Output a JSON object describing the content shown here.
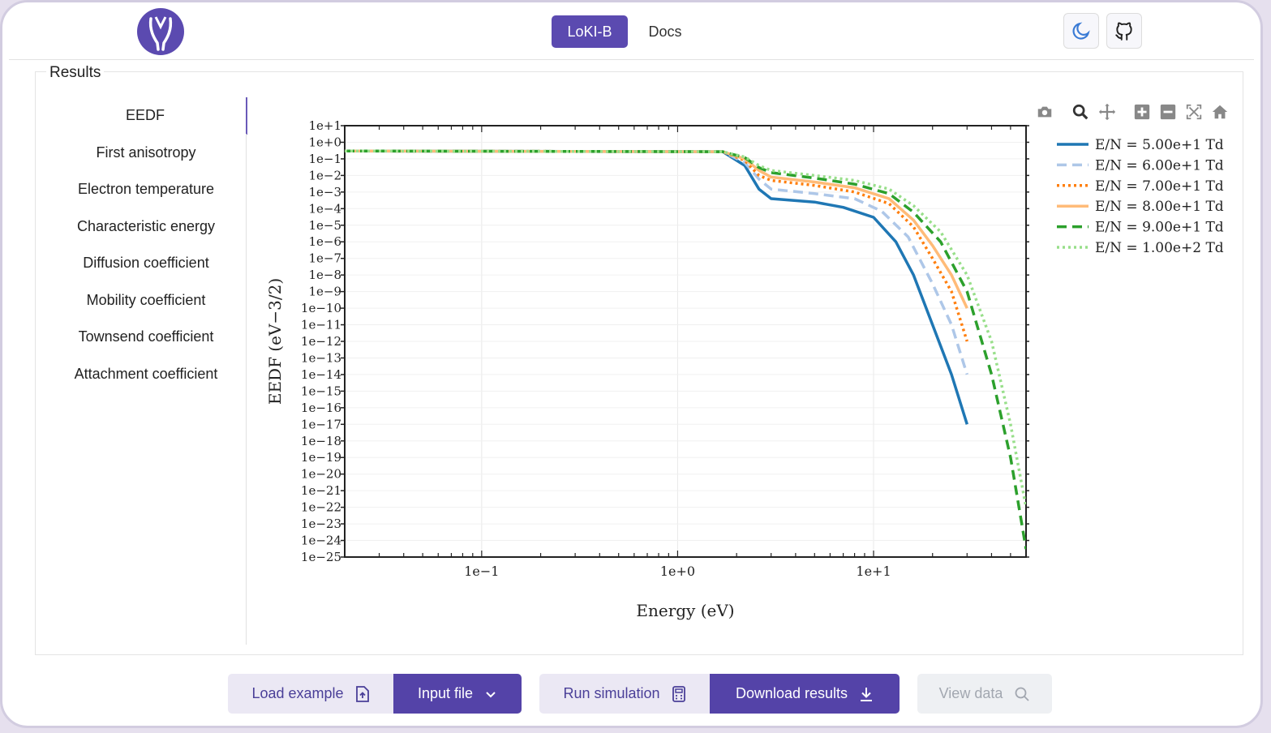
{
  "nav": {
    "active_label": "LoKI-B",
    "docs_label": "Docs"
  },
  "icons": {
    "logo": "loki-logo-icon",
    "theme": "moon-icon",
    "github": "github-icon"
  },
  "colors": {
    "accent": "#5443a8",
    "accent_light": "#ebe8f4"
  },
  "results": {
    "title": "Results",
    "tabs": [
      "EEDF",
      "First anisotropy",
      "Electron temperature",
      "Characteristic energy",
      "Diffusion coefficient",
      "Mobility coefficient",
      "Townsend coefficient",
      "Attachment coefficient"
    ],
    "active_tab": "EEDF"
  },
  "modebar": [
    "camera-icon",
    "zoom-icon",
    "pan-icon",
    "zoom-in-icon",
    "zoom-out-icon",
    "autoscale-icon",
    "home-icon"
  ],
  "chart_data": {
    "type": "line",
    "xlabel": "Energy (eV)",
    "ylabel": "EEDF (eV−3/2)",
    "xscale": "log",
    "yscale": "log",
    "xlim": [
      0.02,
      60
    ],
    "ylim": [
      "1e-25",
      "1e+1"
    ],
    "x_ticks": [
      "1e−1",
      "1e+0",
      "1e+1"
    ],
    "y_ticks": [
      "1e+1",
      "1e+0",
      "1e−1",
      "1e−2",
      "1e−3",
      "1e−4",
      "1e−5",
      "1e−6",
      "1e−7",
      "1e−8",
      "1e−9",
      "1e−10",
      "1e−11",
      "1e−12",
      "1e−13",
      "1e−14",
      "1e−15",
      "1e−16",
      "1e−17",
      "1e−18",
      "1e−19",
      "1e−20",
      "1e−21",
      "1e−22",
      "1e−23",
      "1e−24",
      "1e−25"
    ],
    "legend_position": "right",
    "grid": true,
    "series": [
      {
        "name": "E/N = 5.00e+1 Td",
        "color": "#1f77b4",
        "dash": "solid",
        "points": [
          [
            0.02,
            0.3
          ],
          [
            1.7,
            0.27
          ],
          [
            2.2,
            0.04
          ],
          [
            2.6,
            0.0015
          ],
          [
            3,
            0.0004
          ],
          [
            5,
            0.00025
          ],
          [
            7,
            0.00012
          ],
          [
            10,
            3e-05
          ],
          [
            13,
            1e-06
          ],
          [
            16,
            1e-08
          ],
          [
            20,
            1e-11
          ],
          [
            25,
            1e-14
          ],
          [
            30,
            1e-17
          ]
        ]
      },
      {
        "name": "E/N = 6.00e+1 Td",
        "color": "#aec7e8",
        "dash": "dashed",
        "points": [
          [
            0.02,
            0.3
          ],
          [
            1.7,
            0.27
          ],
          [
            2.2,
            0.06
          ],
          [
            2.6,
            0.006
          ],
          [
            3,
            0.0015
          ],
          [
            5,
            0.0008
          ],
          [
            8,
            0.0004
          ],
          [
            11,
            7e-05
          ],
          [
            15,
            2e-06
          ],
          [
            20,
            3e-09
          ],
          [
            25,
            1e-11
          ],
          [
            30,
            1e-14
          ]
        ]
      },
      {
        "name": "E/N = 7.00e+1 Td",
        "color": "#ff7f0e",
        "dash": "dotted",
        "points": [
          [
            0.02,
            0.3
          ],
          [
            1.7,
            0.27
          ],
          [
            2.2,
            0.08
          ],
          [
            2.6,
            0.01
          ],
          [
            3,
            0.005
          ],
          [
            5,
            0.0025
          ],
          [
            8,
            0.001
          ],
          [
            12,
            0.0002
          ],
          [
            16,
            8e-06
          ],
          [
            20,
            1e-07
          ],
          [
            25,
            1e-09
          ],
          [
            30,
            1e-12
          ]
        ]
      },
      {
        "name": "E/N = 8.00e+1 Td",
        "color": "#ffbb78",
        "dash": "solid",
        "points": [
          [
            0.02,
            0.3
          ],
          [
            1.7,
            0.27
          ],
          [
            2.2,
            0.1
          ],
          [
            2.6,
            0.02
          ],
          [
            3,
            0.008
          ],
          [
            5,
            0.004
          ],
          [
            8,
            0.0018
          ],
          [
            12,
            0.0004
          ],
          [
            16,
            2e-05
          ],
          [
            20,
            6e-07
          ],
          [
            25,
            1e-08
          ],
          [
            30,
            1e-10
          ]
        ]
      },
      {
        "name": "E/N = 9.00e+1 Td",
        "color": "#2ca02c",
        "dash": "dashed",
        "points": [
          [
            0.02,
            0.3
          ],
          [
            1.7,
            0.27
          ],
          [
            2.2,
            0.12
          ],
          [
            2.6,
            0.03
          ],
          [
            3,
            0.015
          ],
          [
            5,
            0.007
          ],
          [
            8,
            0.003
          ],
          [
            12,
            0.0008
          ],
          [
            16,
            6e-05
          ],
          [
            22,
            1e-06
          ],
          [
            30,
            1e-09
          ],
          [
            40,
            1e-14
          ],
          [
            50,
            1e-19
          ],
          [
            60,
            3e-25
          ]
        ]
      },
      {
        "name": "E/N = 1.00e+2 Td",
        "color": "#98df8a",
        "dash": "dotted",
        "points": [
          [
            0.02,
            0.3
          ],
          [
            1.7,
            0.27
          ],
          [
            2.2,
            0.13
          ],
          [
            2.6,
            0.04
          ],
          [
            3,
            0.02
          ],
          [
            5,
            0.01
          ],
          [
            8,
            0.005
          ],
          [
            12,
            0.0015
          ],
          [
            16,
            0.00015
          ],
          [
            22,
            4e-06
          ],
          [
            30,
            1e-08
          ],
          [
            40,
            1e-12
          ],
          [
            50,
            1e-17
          ],
          [
            60,
            1e-22
          ]
        ]
      }
    ]
  },
  "actions": {
    "load_example": "Load example",
    "input_file": "Input file",
    "run_simulation": "Run simulation",
    "download_results": "Download results",
    "view_data": "View data"
  }
}
